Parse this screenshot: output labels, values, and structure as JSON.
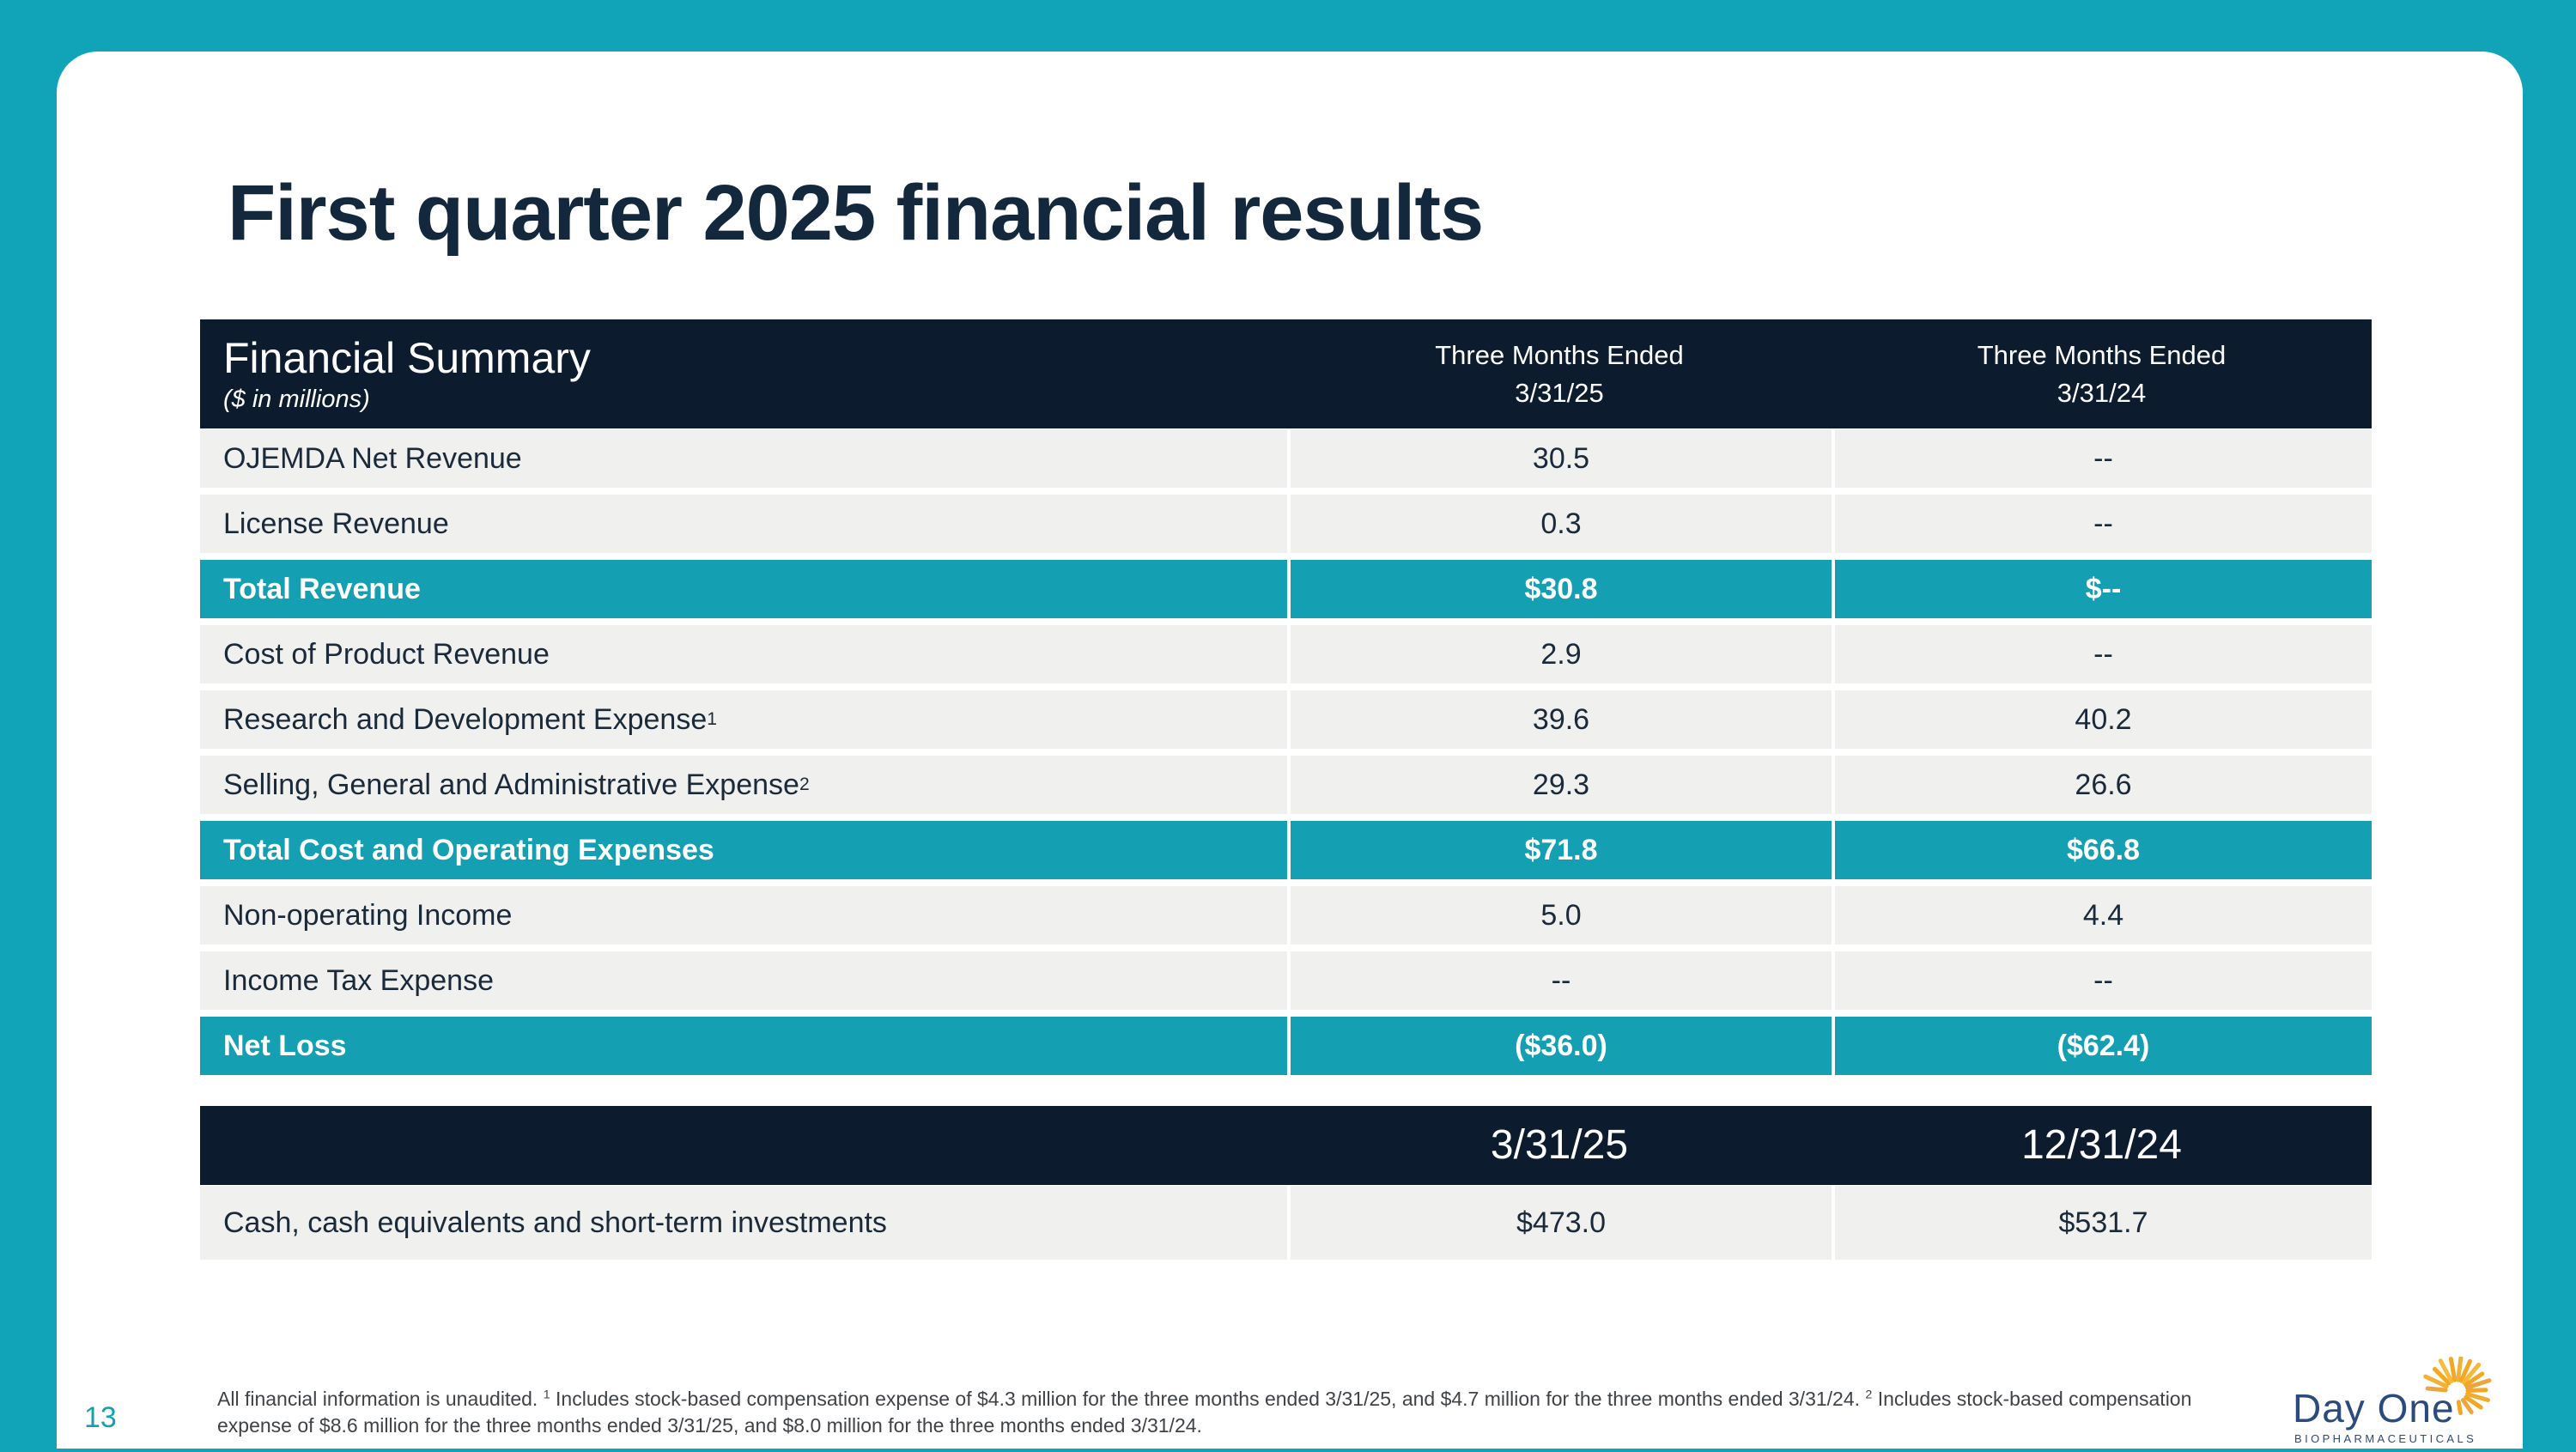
{
  "colors": {
    "background_teal": "#11a3b8",
    "highlight_teal": "#149fb3",
    "header_navy": "#0d1b2e",
    "title_navy": "#14283d",
    "row_gray": "#f0f0ee",
    "page_number_teal": "#1a9fb0",
    "logo_navy": "#2b4b7e",
    "logo_gold": "#f2a824"
  },
  "page": {
    "title": "First quarter 2025 financial results",
    "number": "13"
  },
  "summary_table": {
    "title": "Financial Summary",
    "subtitle": "($ in millions)",
    "columns": [
      {
        "line1": "Three Months Ended",
        "line2": "3/31/25"
      },
      {
        "line1": "Three Months Ended",
        "line2": "3/31/24"
      }
    ],
    "rows": [
      {
        "label": "OJEMDA Net Revenue",
        "sup": "",
        "v1": "30.5",
        "v2": "--",
        "highlight": false
      },
      {
        "label": "License Revenue",
        "sup": "",
        "v1": "0.3",
        "v2": "--",
        "highlight": false
      },
      {
        "label": "Total Revenue",
        "sup": "",
        "v1": "$30.8",
        "v2": "$--",
        "highlight": true
      },
      {
        "label": "Cost of Product Revenue",
        "sup": "",
        "v1": "2.9",
        "v2": "--",
        "highlight": false
      },
      {
        "label": "Research and Development Expense",
        "sup": "1",
        "v1": "39.6",
        "v2": "40.2",
        "highlight": false
      },
      {
        "label": "Selling, General and Administrative Expense",
        "sup": "2",
        "v1": "29.3",
        "v2": "26.6",
        "highlight": false
      },
      {
        "label": "Total Cost and Operating Expenses",
        "sup": "",
        "v1": "$71.8",
        "v2": "$66.8",
        "highlight": true
      },
      {
        "label": "Non-operating Income",
        "sup": "",
        "v1": "5.0",
        "v2": "4.4",
        "highlight": false
      },
      {
        "label": "Income Tax Expense",
        "sup": "",
        "v1": "--",
        "v2": "--",
        "highlight": false
      },
      {
        "label": "Net Loss",
        "sup": "",
        "v1": "($36.0)",
        "v2": "($62.4)",
        "highlight": true
      }
    ]
  },
  "cash_table": {
    "columns": [
      {
        "line1": "",
        "line2": "3/31/25"
      },
      {
        "line1": "",
        "line2": "12/31/24"
      }
    ],
    "rows": [
      {
        "label": "Cash, cash equivalents and short-term investments",
        "sup": "",
        "v1": "$473.0",
        "v2": "$531.7",
        "highlight": false
      }
    ]
  },
  "footnote": {
    "segments": [
      {
        "text": "All financial information is unaudited. ",
        "sup": false
      },
      {
        "text": "1",
        "sup": true
      },
      {
        "text": " Includes stock-based compensation expense of $4.3 million for the three months ended 3/31/25, and $4.7 million for the three months ended 3/31/24. ",
        "sup": false
      },
      {
        "text": "2",
        "sup": true
      },
      {
        "text": " Includes stock-based compensation expense of $8.6 million for the three months ended 3/31/25, and $8.0 million for the three months ended 3/31/24.",
        "sup": false
      }
    ]
  },
  "logo": {
    "name": "Day One",
    "subname": "BIOPHARMACEUTICALS"
  }
}
